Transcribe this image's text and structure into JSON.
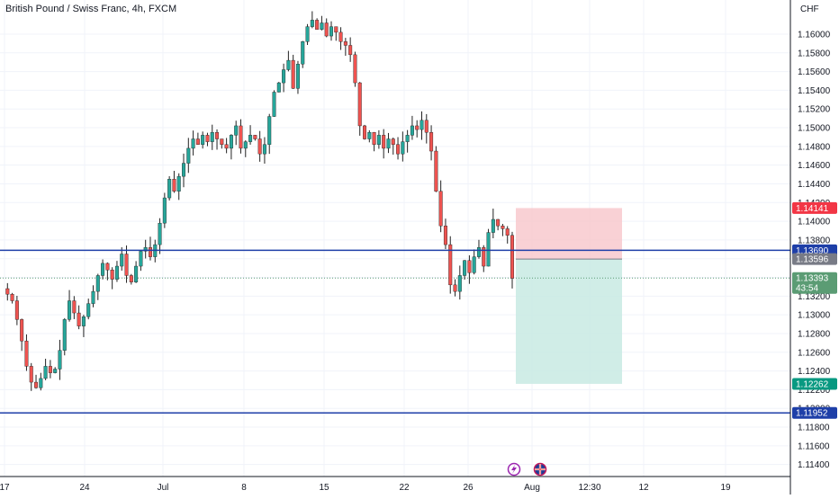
{
  "header": {
    "title": "British Pound / Swiss Franc, 4h, FXCM",
    "currency": "CHF"
  },
  "colors": {
    "up": "#26a69a",
    "down": "#ef5350",
    "wick": "#000000",
    "hline": "#1e3fa8",
    "stop_zone": "#f7c6cb",
    "target_zone": "#c8eae3",
    "tag_stop": "#f23645",
    "tag_level": "#1e3fa8",
    "tag_entry": "#787b86",
    "tag_last": "#5b9c74",
    "tag_target": "#089981",
    "grid": "#f0f3fa"
  },
  "icons": [
    "lightning-icon",
    "uk-flag-icon"
  ],
  "chart_data": {
    "type": "candlestick",
    "symbol": "British Pound / Swiss Franc, 4h, FXCM",
    "ylim": [
      1.1131,
      1.1624
    ],
    "y_ticks": [
      "1.16000",
      "1.15800",
      "1.15600",
      "1.15400",
      "1.15200",
      "1.15000",
      "1.14800",
      "1.14600",
      "1.14400",
      "1.14200",
      "1.14000",
      "1.13800",
      "1.13600",
      "1.13400",
      "1.13200",
      "1.13000",
      "1.12800",
      "1.12600",
      "1.12400",
      "1.12200",
      "1.12000",
      "1.11800",
      "1.11600",
      "1.11400"
    ],
    "x_ticks": [
      "17",
      "24",
      "Jul",
      "8",
      "15",
      "22",
      "26",
      "Aug",
      "12:30",
      "12",
      "19"
    ],
    "horizontal_levels": [
      1.1369,
      1.11952
    ],
    "price_tags": [
      {
        "label": "1.14141",
        "value": 1.14141,
        "kind": "stop"
      },
      {
        "label": "1.13690",
        "value": 1.1369,
        "kind": "level"
      },
      {
        "label": "1.13596",
        "value": 1.13596,
        "kind": "entry"
      },
      {
        "label": "1.13393",
        "sublabel": "43:54",
        "value": 1.13393,
        "kind": "last"
      },
      {
        "label": "1.12262",
        "value": 1.12262,
        "kind": "target"
      },
      {
        "label": "1.11952",
        "value": 1.11952,
        "kind": "level"
      }
    ],
    "position": {
      "entry": 1.13596,
      "stop": 1.14141,
      "target": 1.12262
    },
    "price_path": [
      1.1328,
      1.1322,
      1.1315,
      1.1295,
      1.1272,
      1.1245,
      1.1228,
      1.1222,
      1.1232,
      1.1245,
      1.1238,
      1.1242,
      1.1262,
      1.1295,
      1.1315,
      1.1302,
      1.1288,
      1.1298,
      1.1312,
      1.1325,
      1.1342,
      1.1355,
      1.1348,
      1.1338,
      1.1352,
      1.1365,
      1.1342,
      1.1335,
      1.1352,
      1.1368,
      1.1372,
      1.1362,
      1.1375,
      1.1398,
      1.1425,
      1.1445,
      1.1432,
      1.1448,
      1.1462,
      1.1478,
      1.1488,
      1.1482,
      1.1492,
      1.1485,
      1.1495,
      1.1488,
      1.1482,
      1.1478,
      1.1492,
      1.1502,
      1.1478,
      1.1485,
      1.1492,
      1.1488,
      1.1472,
      1.1482,
      1.1512,
      1.1538,
      1.1548,
      1.1562,
      1.1572,
      1.1542,
      1.1568,
      1.1592,
      1.1608,
      1.1615,
      1.1605,
      1.1612,
      1.1598,
      1.1608,
      1.1602,
      1.1592,
      1.1588,
      1.1578,
      1.1548,
      1.1502,
      1.1488,
      1.1495,
      1.1482,
      1.1492,
      1.1478,
      1.1488,
      1.1482,
      1.1472,
      1.1485,
      1.1492,
      1.1502,
      1.1498,
      1.1508,
      1.1495,
      1.1475,
      1.1432,
      1.1395,
      1.1375,
      1.1332,
      1.1325,
      1.1342,
      1.1358,
      1.1345,
      1.1362,
      1.1372,
      1.1352,
      1.1388,
      1.1402,
      1.1395,
      1.1392,
      1.1385,
      1.1339
    ]
  }
}
